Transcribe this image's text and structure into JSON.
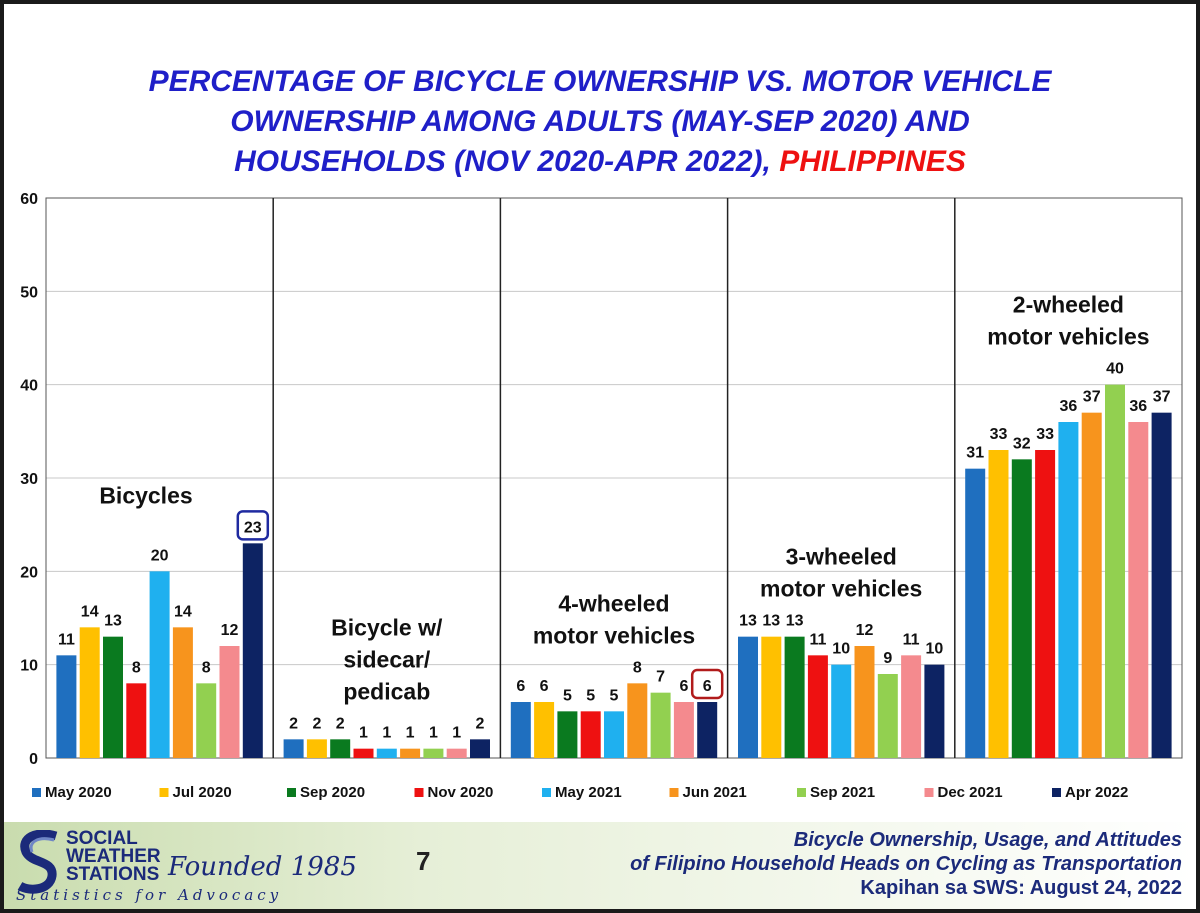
{
  "title": {
    "line1": "PERCENTAGE OF BICYCLE OWNERSHIP VS. MOTOR VEHICLE",
    "line2": "OWNERSHIP AMONG ADULTS (MAY-SEP 2020) AND",
    "line3_main": "HOUSEHOLDS (NOV 2020-APR 2022), ",
    "line3_highlight": "PHILIPPINES"
  },
  "chart_data": {
    "type": "bar",
    "title": "PERCENTAGE OF BICYCLE OWNERSHIP VS. MOTOR VEHICLE OWNERSHIP AMONG ADULTS (MAY-SEP 2020) AND HOUSEHOLDS (NOV 2020-APR 2022), PHILIPPINES",
    "ylim": [
      0,
      60
    ],
    "yticks": [
      0,
      10,
      20,
      30,
      40,
      50,
      60
    ],
    "grid": true,
    "legend_position": "bottom",
    "categories": [
      {
        "label_lines": [
          "Bicycles"
        ]
      },
      {
        "label_lines": [
          "Bicycle w/",
          "sidecar/",
          "pedicab"
        ]
      },
      {
        "label_lines": [
          "4-wheeled",
          "motor vehicles"
        ]
      },
      {
        "label_lines": [
          "3-wheeled",
          "motor vehicles"
        ]
      },
      {
        "label_lines": [
          "2-wheeled",
          "motor vehicles"
        ]
      }
    ],
    "series": [
      {
        "name": "May 2020",
        "color": "#1f6fbf",
        "values": [
          11,
          2,
          6,
          13,
          31
        ]
      },
      {
        "name": "Jul 2020",
        "color": "#ffc000",
        "values": [
          14,
          2,
          6,
          13,
          33
        ]
      },
      {
        "name": "Sep 2020",
        "color": "#0a7a1f",
        "values": [
          13,
          2,
          5,
          13,
          32
        ]
      },
      {
        "name": "Nov 2020",
        "color": "#ee1111",
        "values": [
          8,
          1,
          5,
          11,
          33
        ]
      },
      {
        "name": "May 2021",
        "color": "#1fb0ef",
        "values": [
          20,
          1,
          5,
          10,
          36
        ]
      },
      {
        "name": "Jun 2021",
        "color": "#f7941d",
        "values": [
          14,
          1,
          8,
          12,
          37
        ]
      },
      {
        "name": "Sep 2021",
        "color": "#92d050",
        "values": [
          8,
          1,
          7,
          9,
          40
        ]
      },
      {
        "name": "Dec 2021",
        "color": "#f48a8e",
        "values": [
          12,
          1,
          6,
          11,
          36
        ]
      },
      {
        "name": "Apr 2022",
        "color": "#0d2363",
        "values": [
          23,
          2,
          6,
          10,
          37
        ]
      }
    ],
    "highlights": [
      {
        "category": 0,
        "series": 8,
        "color": "#1f2aa0"
      },
      {
        "category": 2,
        "series": 8,
        "color": "#b11b1b"
      }
    ]
  },
  "footer": {
    "org_line1": "SOCIAL",
    "org_line2": "WEATHER",
    "org_line3": "STATIONS",
    "founded": "Founded 1985",
    "tagline": "Statistics for Advocacy",
    "page_number": "7",
    "report_line1": "Bicycle Ownership, Usage, and Attitudes",
    "report_line2": "of Filipino Household Heads on Cycling as Transportation",
    "report_line3": "Kapihan sa SWS: August 24, 2022"
  }
}
